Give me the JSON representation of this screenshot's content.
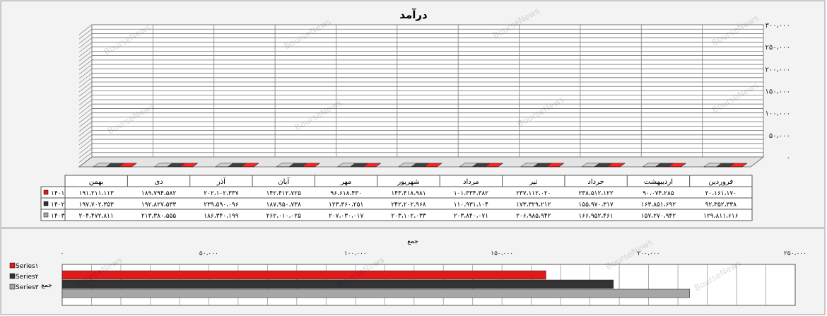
{
  "chart_data": [
    {
      "type": "bar",
      "title": "درآمد",
      "y_ticks": [
        "۳۰۰،۰۰۰",
        "۲۵۰،۰۰۰",
        "۲۰۰،۰۰۰",
        "۱۵۰،۰۰۰",
        "۱۰۰،۰۰۰",
        "۵۰،۰۰۰",
        "۰"
      ],
      "ylim": [
        0,
        300000
      ],
      "grid": true,
      "legend_position": "table-left",
      "categories": [
        "بهمن",
        "دی",
        "آذر",
        "آبان",
        "مهر",
        "شهریور",
        "مرداد",
        "تیر",
        "خرداد",
        "اردیبهشت",
        "فروردین"
      ],
      "series": [
        {
          "name": "۱۴۰۱",
          "color": "#e01a1a",
          "values": [
            191211113,
            189794582,
            202102337,
            142412725,
            96618430,
            143418981,
            101334382,
            237112020,
            238512122,
            90074285,
            20161170
          ],
          "labels": [
            "۱۹۱،۲۱۱،۱۱۳",
            "۱۸۹،۷۹۴،۵۸۲",
            "۲۰۲،۱۰۲،۳۳۷",
            "۱۴۲،۴۱۲،۷۲۵",
            "۹۶،۶۱۸،۴۳۰",
            "۱۴۳،۴۱۸،۹۸۱",
            "۱۰۱،۳۳۴،۳۸۲",
            "۲۳۷،۱۱۲،۰۲۰",
            "۲۳۸،۵۱۲،۱۲۲",
            "۹۰،۰۷۴،۲۸۵",
            "۲۰،۱۶۱،۱۷۰"
          ]
        },
        {
          "name": "۱۴۰۲",
          "color": "#333333",
          "values": [
            197702353,
            192827533,
            239590096,
            187950738,
            123360251,
            242202968,
            110931104,
            173329212,
            155970317,
            163851692,
            92352338
          ],
          "labels": [
            "۱۹۷،۷۰۲،۳۵۳",
            "۱۹۲،۸۲۷،۵۳۳",
            "۲۳۹،۵۹۰،۰۹۶",
            "۱۸۷،۹۵۰،۷۳۸",
            "۱۲۳،۳۶۰،۲۵۱",
            "۲۴۲،۲۰۲،۹۶۸",
            "۱۱۰،۹۳۱،۱۰۴",
            "۱۷۳،۳۲۹،۲۱۲",
            "۱۵۵،۹۷۰،۳۱۷",
            "۱۶۳،۸۵۱،۶۹۲",
            "۹۲،۳۵۲،۳۳۸"
          ]
        },
        {
          "name": "۱۴۰۳",
          "color": "#a6a6a6",
          "values": [
            204472811,
            213380555,
            186340199,
            262010025,
            207030017,
            203102033,
            203840071,
            206985942,
            166952461,
            157270942,
            129811616
          ],
          "labels": [
            "۲۰۴،۴۷۲،۸۱۱",
            "۲۱۳،۳۸۰،۵۵۵",
            "۱۸۶،۳۴۰،۱۹۹",
            "۲۶۲،۰۱۰،۰۲۵",
            "۲۰۷،۰۳۰،۰۱۷",
            "۲۰۳،۱۰۲،۰۳۳",
            "۲۰۳،۸۴۰،۰۷۱",
            "۲۰۶،۹۸۵،۹۴۲",
            "۱۶۶،۹۵۲،۴۶۱",
            "۱۵۷،۲۷۰،۹۴۲",
            "۱۲۹،۸۱۱،۶۱۶"
          ]
        }
      ],
      "watermark": "BourseNews"
    },
    {
      "type": "bar",
      "orientation": "horizontal",
      "title": "جمع",
      "x_ticks": [
        "۰",
        "۵۰،۰۰۰",
        "۱۰۰،۰۰۰",
        "۱۵۰،۰۰۰",
        "۲۰۰،۰۰۰",
        "۲۵۰،۰۰۰"
      ],
      "xlim": [
        0,
        250000
      ],
      "category": "جمع",
      "series": [
        {
          "name": "Series۱",
          "color": "#e01a1a",
          "value": 165000
        },
        {
          "name": "Series۲",
          "color": "#333333",
          "value": 188000
        },
        {
          "name": "Series۳",
          "color": "#a6a6a6",
          "value": 214000
        }
      ],
      "watermark": "BourseNews"
    }
  ]
}
